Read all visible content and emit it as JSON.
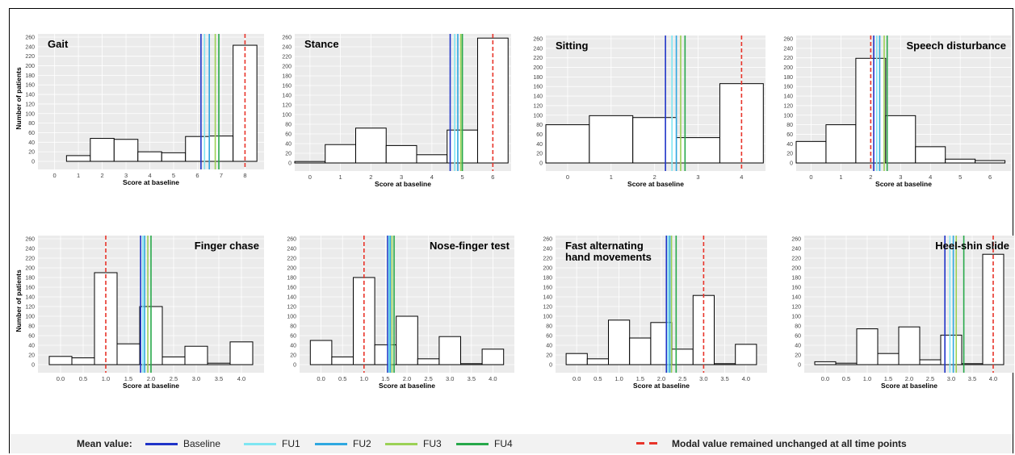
{
  "colors": {
    "panel_bg": "#ebebeb",
    "grid": "#ffffff",
    "bar_fill": "#ffffff",
    "bar_stroke": "#000000",
    "baseline": "#2034c8",
    "fu1": "#7fe6f2",
    "fu2": "#2fa8e0",
    "fu3": "#9bd155",
    "fu4": "#27a84a",
    "modal": "#e8342a"
  },
  "legend": {
    "mean_label": "Mean value:",
    "items": [
      "Baseline",
      "FU1",
      "FU2",
      "FU3",
      "FU4"
    ],
    "modal_label": "Modal value remained unchanged at all time points"
  },
  "chart_data": [
    {
      "type": "bar",
      "title": "Gait",
      "xlabel": "Score at baseline",
      "ylabel": "Number of patients",
      "ylim": [
        0,
        260
      ],
      "yticks": [
        0,
        20,
        40,
        60,
        80,
        100,
        120,
        140,
        160,
        180,
        200,
        220,
        240,
        260
      ],
      "xticks": [
        "0",
        "1",
        "2",
        "3",
        "4",
        "5",
        "6",
        "7",
        "8"
      ],
      "xlim": [
        -0.7,
        8.8
      ],
      "bins": [
        0,
        1,
        2,
        3,
        4,
        5,
        6,
        7,
        8
      ],
      "bin_width": 1,
      "values": [
        0,
        12,
        48,
        46,
        20,
        18,
        52,
        53,
        243
      ],
      "means": [
        6.15,
        6.3,
        6.5,
        6.75,
        6.9
      ],
      "modal": 8
    },
    {
      "type": "bar",
      "title": "Stance",
      "xlabel": "Score at baseline",
      "ylabel": "",
      "ylim": [
        0,
        260
      ],
      "yticks": [
        0,
        20,
        40,
        60,
        80,
        100,
        120,
        140,
        160,
        180,
        200,
        220,
        240,
        260
      ],
      "xticks": [
        "0",
        "1",
        "2",
        "3",
        "4",
        "5",
        "6"
      ],
      "xlim": [
        -0.5,
        6.6
      ],
      "bins": [
        0,
        1,
        2,
        3,
        4,
        5,
        6
      ],
      "bin_width": 1,
      "values": [
        3,
        38,
        72,
        36,
        17,
        68,
        258
      ],
      "means": [
        4.6,
        4.75,
        4.85,
        4.95,
        5.0
      ],
      "modal": 6
    },
    {
      "type": "bar",
      "title": "Sitting",
      "xlabel": "Score at baseline",
      "ylabel": "",
      "ylim": [
        0,
        260
      ],
      "yticks": [
        0,
        20,
        40,
        60,
        80,
        100,
        120,
        140,
        160,
        180,
        200,
        220,
        240,
        260
      ],
      "xticks": [
        "0",
        "1",
        "2",
        "3",
        "4"
      ],
      "xlim": [
        -0.5,
        4.55
      ],
      "bins": [
        0,
        1,
        2,
        3,
        4
      ],
      "bin_width": 1,
      "values": [
        80,
        99,
        95,
        53,
        166
      ],
      "means": [
        2.25,
        2.4,
        2.5,
        2.6,
        2.7
      ],
      "modal": 4
    },
    {
      "type": "bar",
      "title": "Speech disturbance",
      "xlabel": "Score at baseline",
      "ylabel": "",
      "ylim": [
        0,
        260
      ],
      "yticks": [
        0,
        20,
        40,
        60,
        80,
        100,
        120,
        140,
        160,
        180,
        200,
        220,
        240,
        260
      ],
      "xticks": [
        "0",
        "1",
        "2",
        "3",
        "4",
        "5",
        "6"
      ],
      "xlim": [
        -0.5,
        6.7
      ],
      "bins": [
        0,
        1,
        2,
        3,
        4,
        5,
        6
      ],
      "bin_width": 1,
      "values": [
        45,
        80,
        219,
        99,
        34,
        8,
        5
      ],
      "means": [
        2.1,
        2.2,
        2.3,
        2.45,
        2.55
      ],
      "modal": 2
    },
    {
      "type": "bar",
      "title": "Finger chase",
      "xlabel": "Score at baseline",
      "ylabel": "Number of patients",
      "ylim": [
        0,
        260
      ],
      "yticks": [
        0,
        20,
        40,
        60,
        80,
        100,
        120,
        140,
        160,
        180,
        200,
        220,
        240,
        260
      ],
      "xticks": [
        "0.0",
        "0.5",
        "1.0",
        "1.5",
        "2.0",
        "2.5",
        "3.0",
        "3.5",
        "4.0"
      ],
      "xlim": [
        -0.5,
        4.5
      ],
      "bins": [
        0,
        0.5,
        1,
        1.5,
        2,
        2.5,
        3,
        3.5,
        4
      ],
      "bin_width": 0.5,
      "values": [
        17,
        14,
        190,
        43,
        120,
        16,
        38,
        3,
        47
      ],
      "means": [
        1.77,
        1.82,
        1.86,
        1.93,
        2.0
      ],
      "modal": 1.0
    },
    {
      "type": "bar",
      "title": "Nose-finger test",
      "xlabel": "Score at baseline",
      "ylabel": "",
      "ylim": [
        0,
        260
      ],
      "yticks": [
        0,
        20,
        40,
        60,
        80,
        100,
        120,
        140,
        160,
        180,
        200,
        220,
        240,
        260
      ],
      "xticks": [
        "0.0",
        "0.5",
        "1.0",
        "1.5",
        "2.0",
        "2.5",
        "3.0",
        "3.5",
        "4.0"
      ],
      "xlim": [
        -0.5,
        4.5
      ],
      "bins": [
        0,
        0.5,
        1,
        1.5,
        2,
        2.5,
        3,
        3.5,
        4
      ],
      "bin_width": 0.5,
      "values": [
        50,
        16,
        180,
        41,
        100,
        12,
        58,
        2,
        32
      ],
      "means": [
        1.55,
        1.58,
        1.61,
        1.65,
        1.7
      ],
      "modal": 1.0
    },
    {
      "type": "bar",
      "title": "Fast alternating\nhand movements",
      "xlabel": "Score at baseline",
      "ylabel": "",
      "ylim": [
        0,
        260
      ],
      "yticks": [
        0,
        20,
        40,
        60,
        80,
        100,
        120,
        140,
        160,
        180,
        200,
        220,
        240,
        260
      ],
      "xticks": [
        "0.0",
        "0.5",
        "1.0",
        "1.5",
        "2.0",
        "2.5",
        "3.0",
        "3.5",
        "4.0"
      ],
      "xlim": [
        -0.5,
        4.5
      ],
      "bins": [
        0,
        0.5,
        1,
        1.5,
        2,
        2.5,
        3,
        3.5,
        4
      ],
      "bin_width": 0.5,
      "values": [
        23,
        12,
        92,
        55,
        87,
        32,
        143,
        2,
        42
      ],
      "means": [
        2.12,
        2.16,
        2.2,
        2.24,
        2.35
      ],
      "modal": 3.0
    },
    {
      "type": "bar",
      "title": "Heel-shin slide",
      "xlabel": "Score at baseline",
      "ylabel": "",
      "ylim": [
        0,
        260
      ],
      "yticks": [
        0,
        20,
        40,
        60,
        80,
        100,
        120,
        140,
        160,
        180,
        200,
        220,
        240,
        260
      ],
      "xticks": [
        "0.0",
        "0.5",
        "1.0",
        "1.5",
        "2.0",
        "2.5",
        "3.0",
        "3.5",
        "4.0"
      ],
      "xlim": [
        -0.5,
        4.5
      ],
      "bins": [
        0,
        0.5,
        1,
        1.5,
        2,
        2.5,
        3,
        3.5,
        4
      ],
      "bin_width": 0.5,
      "values": [
        6,
        3,
        74,
        23,
        78,
        10,
        61,
        2,
        228
      ],
      "means": [
        2.85,
        2.97,
        3.05,
        3.12,
        3.3
      ],
      "modal": 4.0
    }
  ]
}
